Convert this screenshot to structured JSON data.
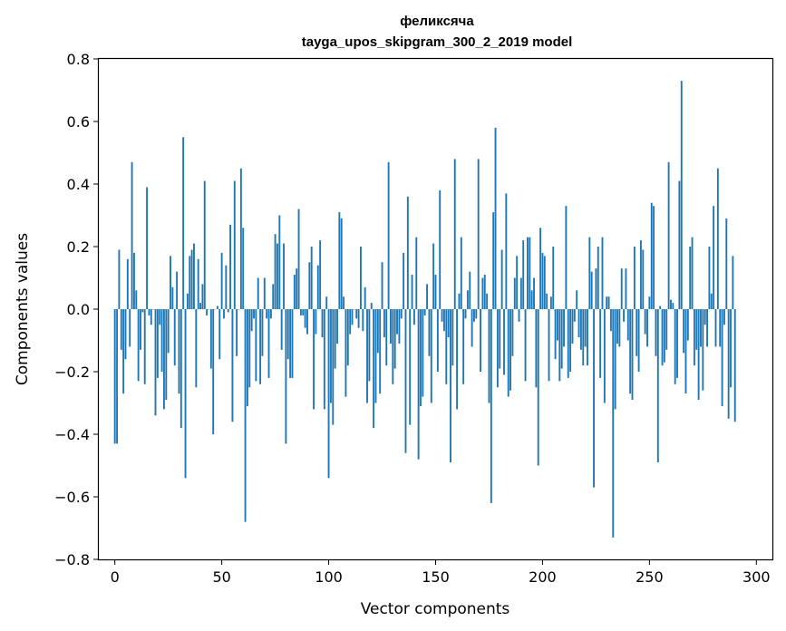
{
  "chart_data": {
    "type": "bar",
    "title": "феликсяча",
    "subtitle": "tayga_upos_skipgram_300_2_2019 model",
    "xlabel": "Vector components",
    "ylabel": "Components values",
    "xlim": [
      -7.5,
      307.5
    ],
    "ylim": [
      -0.8,
      0.8
    ],
    "xticks": [
      0,
      50,
      100,
      150,
      200,
      250,
      300
    ],
    "yticks": [
      -0.8,
      -0.6,
      -0.4,
      -0.2,
      0.0,
      0.2,
      0.4,
      0.6,
      0.8
    ],
    "ytick_labels": [
      "−0.8",
      "−0.6",
      "−0.4",
      "−0.2",
      "0.0",
      "0.2",
      "0.4",
      "0.6",
      "0.8"
    ],
    "bar_color": "#1f77b4",
    "x_start": 0,
    "values": [
      -0.43,
      -0.43,
      0.19,
      -0.13,
      -0.27,
      -0.16,
      0.16,
      -0.12,
      0.47,
      0.18,
      0.06,
      -0.23,
      -0.13,
      -0.01,
      -0.24,
      0.39,
      -0.02,
      -0.05,
      0.0,
      -0.34,
      -0.22,
      -0.05,
      -0.2,
      -0.32,
      -0.29,
      -0.14,
      0.17,
      0.07,
      -0.18,
      0.12,
      -0.27,
      -0.38,
      0.55,
      -0.54,
      0.05,
      0.17,
      0.19,
      0.21,
      -0.25,
      0.16,
      0.02,
      0.08,
      0.41,
      -0.02,
      0.0,
      -0.19,
      -0.4,
      0.0,
      0.01,
      -0.16,
      0.18,
      -0.03,
      0.14,
      -0.01,
      0.27,
      -0.36,
      0.41,
      -0.15,
      0.0,
      0.45,
      0.26,
      -0.68,
      -0.31,
      -0.25,
      -0.07,
      -0.03,
      -0.23,
      0.1,
      -0.24,
      -0.15,
      0.1,
      -0.03,
      -0.22,
      -0.03,
      0.08,
      0.24,
      0.21,
      0.3,
      -0.13,
      0.21,
      -0.43,
      -0.16,
      -0.22,
      -0.22,
      0.11,
      0.13,
      0.32,
      -0.02,
      -0.02,
      -0.06,
      -0.08,
      0.15,
      0.2,
      -0.32,
      -0.08,
      0.14,
      0.22,
      -0.09,
      -0.32,
      0.04,
      -0.54,
      -0.3,
      -0.37,
      -0.19,
      -0.11,
      0.31,
      0.29,
      0.04,
      -0.28,
      -0.18,
      -0.08,
      -0.05,
      0.0,
      -0.03,
      -0.06,
      0.2,
      -0.07,
      0.07,
      -0.3,
      -0.23,
      0.02,
      -0.38,
      -0.3,
      -0.14,
      -0.27,
      0.15,
      -0.09,
      -0.18,
      0.47,
      -0.11,
      -0.24,
      -0.19,
      -0.08,
      -0.11,
      -0.03,
      0.18,
      -0.46,
      0.36,
      -0.37,
      0.11,
      -0.05,
      0.23,
      -0.48,
      -0.31,
      -0.28,
      -0.02,
      0.08,
      -0.15,
      -0.3,
      0.21,
      0.11,
      -0.2,
      0.38,
      -0.04,
      -0.07,
      -0.24,
      -0.09,
      -0.49,
      -0.18,
      0.48,
      -0.32,
      0.05,
      0.23,
      -0.24,
      -0.03,
      0.06,
      0.12,
      -0.12,
      -0.04,
      -0.03,
      0.48,
      -0.2,
      0.1,
      0.11,
      0.05,
      -0.3,
      -0.62,
      0.31,
      0.58,
      -0.25,
      -0.19,
      0.19,
      -0.21,
      0.37,
      -0.28,
      -0.26,
      -0.15,
      0.1,
      0.17,
      -0.04,
      0.1,
      0.22,
      -0.23,
      0.23,
      0.23,
      0.06,
      0.1,
      -0.25,
      -0.5,
      0.26,
      0.18,
      0.17,
      0.05,
      -0.23,
      0.04,
      0.2,
      -0.16,
      -0.1,
      -0.23,
      -0.19,
      -0.12,
      0.33,
      -0.22,
      -0.2,
      -0.11,
      -0.04,
      0.06,
      -0.09,
      -0.13,
      -0.18,
      -0.12,
      -0.18,
      0.23,
      0.12,
      -0.57,
      0.13,
      0.2,
      -0.22,
      0.23,
      -0.3,
      0.04,
      0.04,
      -0.07,
      -0.73,
      -0.32,
      -0.11,
      -0.12,
      0.13,
      -0.04,
      0.13,
      -0.1,
      -0.27,
      -0.29,
      0.2,
      -0.15,
      -0.2,
      0.22,
      0.19,
      -0.08,
      -0.12,
      0.04,
      0.34,
      0.33,
      -0.15,
      -0.49,
      0.01,
      -0.18,
      -0.17,
      -0.13,
      0.47,
      0.03,
      0.02,
      -0.24,
      -0.22,
      0.41,
      0.73,
      -0.14,
      -0.27,
      -0.1,
      0.2,
      0.23,
      -0.18,
      -0.13,
      -0.29,
      -0.12,
      -0.26,
      -0.05,
      -0.12,
      0.2,
      0.05,
      0.33,
      -0.12,
      0.45,
      -0.12,
      -0.31,
      -0.05,
      0.29,
      -0.35,
      -0.25,
      0.17,
      -0.36
    ]
  }
}
